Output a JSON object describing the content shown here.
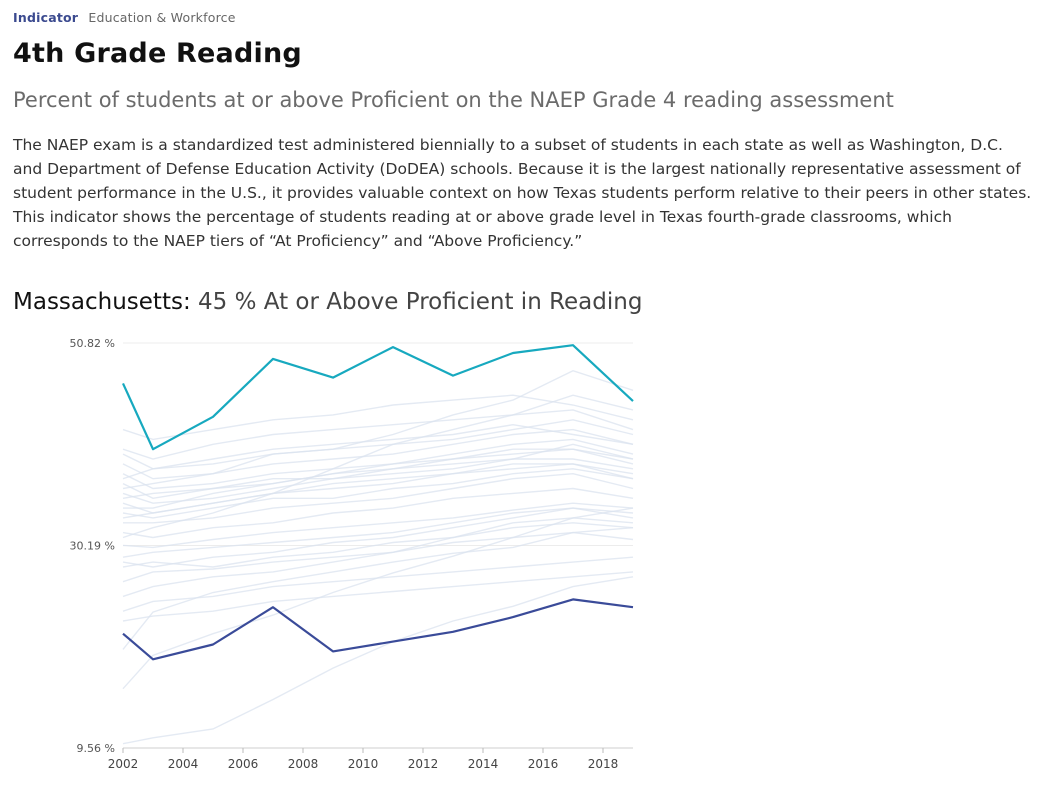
{
  "header": {
    "tag": "Indicator",
    "category": "Education & Workforce",
    "title": "4th Grade Reading",
    "subtitle": "Percent of students at or above Proficient on the NAEP Grade 4 reading assessment",
    "description": "The NAEP exam is a standardized test administered biennially to a subset of students in each state as well as Washington, D.C. and Department of Defense Education Activity (DoDEA) schools. Because it is the largest nationally representative assessment of student performance in the U.S., it provides valuable context on how Texas students perform relative to their peers in other states. This indicator shows the percentage of students reading at or above grade level in Texas fourth-grade classrooms, which corresponds to the NAEP tiers of “At Proficiency” and “Above Proficiency.”"
  },
  "chart_heading": {
    "state": "Massachusetts:",
    "value_text": "45 % At or Above Proficient in Reading"
  },
  "chart_data": {
    "type": "line",
    "x": [
      2002,
      2003,
      2005,
      2007,
      2009,
      2011,
      2013,
      2015,
      2017,
      2019
    ],
    "xlim": [
      2002,
      2019
    ],
    "xticks": [
      "2002",
      "2004",
      "2006",
      "2008",
      "2010",
      "2012",
      "2014",
      "2016",
      "2018"
    ],
    "ylim": [
      9.56,
      50.82
    ],
    "yticks": [
      "50.82 %",
      "30.19 %",
      "9.56 %"
    ],
    "grid": true,
    "colors": {
      "highlight": "#17a9bf",
      "secondary": "#3a4b99",
      "background": "#dbe3ef"
    },
    "series": [
      {
        "name": "Massachusetts",
        "role": "highlight",
        "values": [
          46.7,
          40.0,
          43.3,
          49.2,
          47.3,
          50.4,
          47.5,
          49.8,
          50.6,
          44.9
        ]
      },
      {
        "role": "secondary",
        "values": [
          21.2,
          18.6,
          20.1,
          23.9,
          19.4,
          20.4,
          21.4,
          22.9,
          24.7,
          23.9
        ]
      },
      {
        "values": [
          10.0,
          10.6,
          11.5,
          14.5,
          17.7,
          20.4,
          22.5,
          24.0,
          26.0,
          27.0
        ]
      },
      {
        "values": [
          15.6,
          19.0,
          21.2,
          23.1,
          25.4,
          27.4,
          29.1,
          31.0,
          33.0,
          34.0
        ]
      },
      {
        "values": [
          19.6,
          23.4,
          25.4,
          26.5,
          27.5,
          28.5,
          29.4,
          30.0,
          31.5,
          32.0
        ]
      },
      {
        "values": [
          23.5,
          24.5,
          25.0,
          26.0,
          26.5,
          27.0,
          27.5,
          28.0,
          28.5,
          29.0
        ]
      },
      {
        "values": [
          26.5,
          27.5,
          27.8,
          28.5,
          29.0,
          29.5,
          30.5,
          31.0,
          31.5,
          30.8
        ]
      },
      {
        "values": [
          28.5,
          28.0,
          29.0,
          29.5,
          30.5,
          31.0,
          32.0,
          33.0,
          34.0,
          33.0
        ]
      },
      {
        "values": [
          30.2,
          30.0,
          30.8,
          31.5,
          32.0,
          32.5,
          33.0,
          33.8,
          34.5,
          34.0
        ]
      },
      {
        "values": [
          31.5,
          31.0,
          32.0,
          32.5,
          33.5,
          34.0,
          35.0,
          35.5,
          36.0,
          35.0
        ]
      },
      {
        "values": [
          32.5,
          32.5,
          33.0,
          34.0,
          34.5,
          35.0,
          36.0,
          37.0,
          37.5,
          36.0
        ]
      },
      {
        "values": [
          33.5,
          33.0,
          34.0,
          35.0,
          35.0,
          36.0,
          36.5,
          37.5,
          38.0,
          37.0
        ]
      },
      {
        "values": [
          34.5,
          33.5,
          34.5,
          35.5,
          36.0,
          36.5,
          37.5,
          38.5,
          38.5,
          37.5
        ]
      },
      {
        "values": [
          35.5,
          34.5,
          35.0,
          36.0,
          37.0,
          37.5,
          38.0,
          39.0,
          39.0,
          38.0
        ]
      },
      {
        "values": [
          36.5,
          35.0,
          36.0,
          37.0,
          37.0,
          38.0,
          39.0,
          40.0,
          40.0,
          39.0
        ]
      },
      {
        "values": [
          37.5,
          36.0,
          36.5,
          37.5,
          38.0,
          38.5,
          39.5,
          40.5,
          41.0,
          39.5
        ]
      },
      {
        "values": [
          38.5,
          37.0,
          37.5,
          38.5,
          39.0,
          39.5,
          40.5,
          41.5,
          42.0,
          40.5
        ]
      },
      {
        "values": [
          39.5,
          38.0,
          38.5,
          39.5,
          40.0,
          40.5,
          41.0,
          42.0,
          43.0,
          41.5
        ]
      },
      {
        "values": [
          29.0,
          29.5,
          30.0,
          30.5,
          31.0,
          31.5,
          32.5,
          33.5,
          34.0,
          33.5
        ]
      },
      {
        "values": [
          25.0,
          26.0,
          27.0,
          27.5,
          28.5,
          29.5,
          31.0,
          32.0,
          32.5,
          32.0
        ]
      },
      {
        "values": [
          34.0,
          34.0,
          35.5,
          36.5,
          37.5,
          38.5,
          39.0,
          39.5,
          40.0,
          38.5
        ]
      },
      {
        "values": [
          40.0,
          39.0,
          40.5,
          41.5,
          42.0,
          42.5,
          43.0,
          43.5,
          44.0,
          42.0
        ]
      },
      {
        "values": [
          42.0,
          41.0,
          42.0,
          43.0,
          43.5,
          44.5,
          45.0,
          45.5,
          44.5,
          43.0
        ]
      },
      {
        "values": [
          36.0,
          36.5,
          37.5,
          39.5,
          40.0,
          41.5,
          43.5,
          45.0,
          48.0,
          46.0
        ]
      },
      {
        "values": [
          31.0,
          32.0,
          33.5,
          35.5,
          38.0,
          40.5,
          42.0,
          43.5,
          45.5,
          44.0
        ]
      },
      {
        "values": [
          22.5,
          23.0,
          23.5,
          24.5,
          25.0,
          25.5,
          26.0,
          26.5,
          27.0,
          27.5
        ]
      },
      {
        "values": [
          28.0,
          28.5,
          28.0,
          29.0,
          29.5,
          30.5,
          31.0,
          32.5,
          33.0,
          32.5
        ]
      },
      {
        "values": [
          33.0,
          33.5,
          34.5,
          35.5,
          36.5,
          37.0,
          37.5,
          38.0,
          38.5,
          37.0
        ]
      },
      {
        "values": [
          37.0,
          38.0,
          39.0,
          40.0,
          40.5,
          41.0,
          41.5,
          42.5,
          41.5,
          40.5
        ]
      },
      {
        "values": [
          35.0,
          35.5,
          36.0,
          36.5,
          37.5,
          38.0,
          38.5,
          39.0,
          40.5,
          39.0
        ]
      }
    ]
  }
}
